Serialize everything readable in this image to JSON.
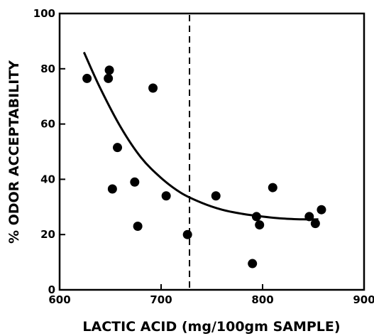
{
  "chart_data": {
    "type": "scatter",
    "title": "",
    "xlabel": "LACTIC ACID (mg/100gm SAMPLE)",
    "ylabel": "% ODOR ACCEPTABILITY",
    "xlim": [
      600,
      900
    ],
    "ylim": [
      0,
      100
    ],
    "x_ticks": [
      "600",
      "700",
      "800",
      "900"
    ],
    "y_ticks": [
      "0",
      "20",
      "40",
      "60",
      "80",
      "100"
    ],
    "grid": false,
    "reference_line": {
      "x": 728,
      "style": "dashed"
    },
    "points": [
      {
        "x": 627,
        "y": 76.5
      },
      {
        "x": 648,
        "y": 76.5
      },
      {
        "x": 649,
        "y": 79.5
      },
      {
        "x": 652,
        "y": 36.5
      },
      {
        "x": 657,
        "y": 51.5
      },
      {
        "x": 674,
        "y": 39
      },
      {
        "x": 677,
        "y": 23
      },
      {
        "x": 692,
        "y": 73
      },
      {
        "x": 705,
        "y": 34
      },
      {
        "x": 726,
        "y": 20
      },
      {
        "x": 754,
        "y": 34
      },
      {
        "x": 790,
        "y": 9.5
      },
      {
        "x": 794,
        "y": 26.5
      },
      {
        "x": 797,
        "y": 23.5
      },
      {
        "x": 810,
        "y": 37
      },
      {
        "x": 846,
        "y": 26.5
      },
      {
        "x": 852,
        "y": 24
      },
      {
        "x": 858,
        "y": 29
      }
    ],
    "fit_curve": [
      {
        "x": 624,
        "y": 86
      },
      {
        "x": 640,
        "y": 73
      },
      {
        "x": 660,
        "y": 59
      },
      {
        "x": 680,
        "y": 48
      },
      {
        "x": 700,
        "y": 40.5
      },
      {
        "x": 720,
        "y": 35
      },
      {
        "x": 740,
        "y": 31.5
      },
      {
        "x": 760,
        "y": 29
      },
      {
        "x": 780,
        "y": 27.5
      },
      {
        "x": 800,
        "y": 26.5
      },
      {
        "x": 820,
        "y": 25.8
      },
      {
        "x": 840,
        "y": 25.5
      },
      {
        "x": 855,
        "y": 25.5
      }
    ]
  }
}
